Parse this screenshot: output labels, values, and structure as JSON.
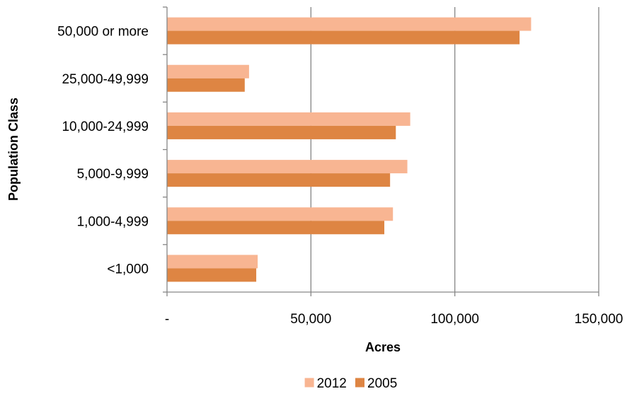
{
  "chart_data": {
    "type": "bar",
    "orientation": "horizontal",
    "categories": [
      "50,000 or more",
      "25,000-49,999",
      "10,000-24,999",
      "5,000-9,999",
      "1,000-4,999",
      "<1,000"
    ],
    "series": [
      {
        "name": "2012",
        "values": [
          126500,
          28500,
          84500,
          83500,
          78500,
          31500
        ],
        "color": "#F8B592"
      },
      {
        "name": "2005",
        "values": [
          122500,
          27000,
          79500,
          77500,
          75500,
          31000
        ],
        "color": "#DE8543"
      }
    ],
    "xlabel": "Acres",
    "ylabel": "Population Class",
    "xlim": [
      0,
      150000
    ],
    "x_ticks": [
      0,
      50000,
      100000,
      150000
    ],
    "x_tick_labels": [
      "-",
      "50,000",
      "100,000",
      "150,000"
    ],
    "grid": "vertical",
    "legend_position": "bottom"
  }
}
